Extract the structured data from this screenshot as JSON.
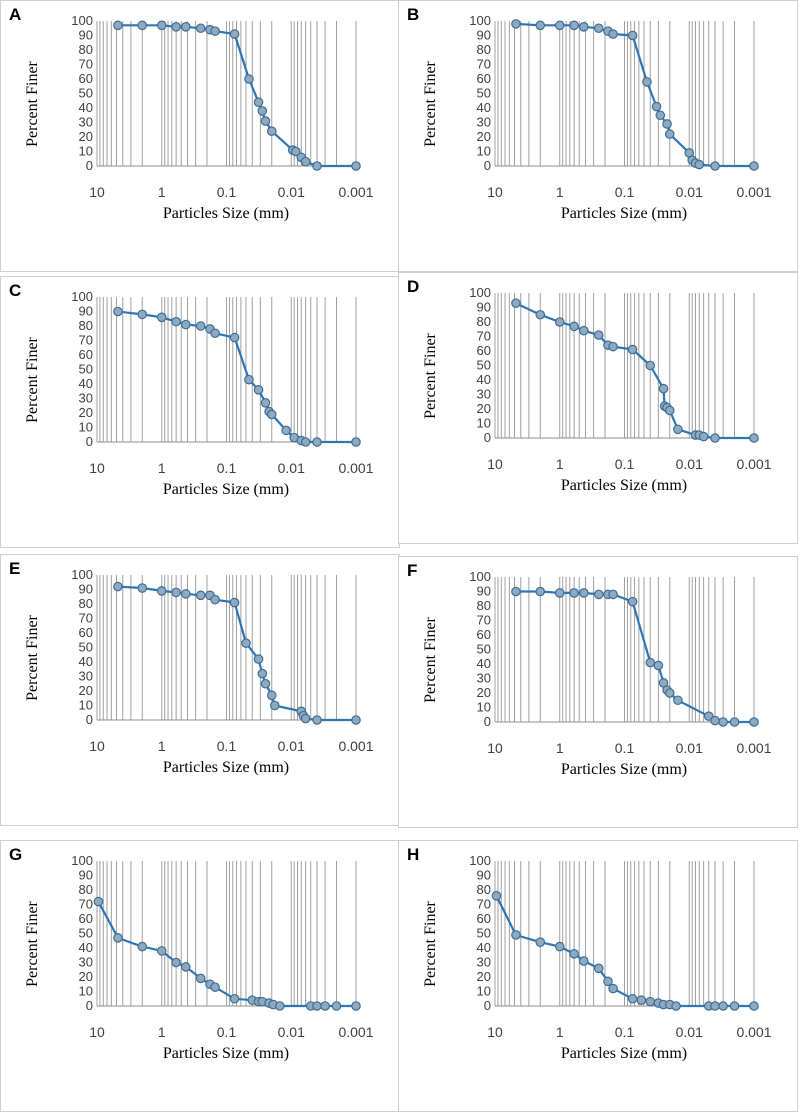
{
  "colors": {
    "line": "#2E75B6",
    "marker_fill": "#8FA9C1",
    "marker_edge": "#3D6E95",
    "grid": "#a0a0a0"
  },
  "chart_data": [
    {
      "panel": "A",
      "type": "line",
      "xlabel": "Particles Size (mm)",
      "ylabel": "Percent Finer",
      "x_scale": "log",
      "x_reversed": true,
      "xlim": [
        10,
        0.001
      ],
      "ylim": [
        0,
        100
      ],
      "yticks": [
        "0",
        "10",
        "20",
        "30",
        "40",
        "50",
        "60",
        "70",
        "80",
        "90",
        "100"
      ],
      "xticks": [
        "10",
        "1",
        "0.1",
        "0.01",
        "0.001"
      ],
      "series": [
        {
          "name": "A",
          "x": [
            4.75,
            2,
            1,
            0.6,
            0.425,
            0.25,
            0.18,
            0.15,
            0.075,
            0.045,
            0.032,
            0.028,
            0.025,
            0.02,
            0.0095,
            0.0085,
            0.007,
            0.006,
            0.004,
            0.001
          ],
          "y": [
            97,
            97,
            97,
            96,
            96,
            95,
            94,
            93,
            91,
            60,
            44,
            38,
            31,
            24,
            11,
            10,
            6,
            3,
            0,
            0
          ]
        }
      ]
    },
    {
      "panel": "B",
      "type": "line",
      "xlabel": "Particles Size (mm)",
      "ylabel": "Percent Finer",
      "x_scale": "log",
      "x_reversed": true,
      "xlim": [
        10,
        0.001
      ],
      "ylim": [
        0,
        100
      ],
      "yticks": [
        "0",
        "10",
        "20",
        "30",
        "40",
        "50",
        "60",
        "70",
        "80",
        "90",
        "100"
      ],
      "xticks": [
        "10",
        "1",
        "0.1",
        "0.01",
        "0.001"
      ],
      "series": [
        {
          "name": "B",
          "x": [
            4.75,
            2,
            1,
            0.6,
            0.425,
            0.25,
            0.18,
            0.15,
            0.075,
            0.045,
            0.032,
            0.028,
            0.022,
            0.02,
            0.01,
            0.009,
            0.008,
            0.007,
            0.004,
            0.001
          ],
          "y": [
            98,
            97,
            97,
            97,
            96,
            95,
            93,
            91,
            90,
            58,
            41,
            35,
            29,
            22,
            9,
            4,
            2,
            1,
            0,
            0
          ]
        }
      ]
    },
    {
      "panel": "C",
      "type": "line",
      "xlabel": "Particles Size (mm)",
      "ylabel": "Percent Finer",
      "x_scale": "log",
      "x_reversed": true,
      "xlim": [
        10,
        0.001
      ],
      "ylim": [
        0,
        100
      ],
      "yticks": [
        "0",
        "10",
        "20",
        "30",
        "40",
        "50",
        "60",
        "70",
        "80",
        "90",
        "100"
      ],
      "xticks": [
        "10",
        "1",
        "0.1",
        "0.01",
        "0.001"
      ],
      "series": [
        {
          "name": "C",
          "x": [
            4.75,
            2,
            1,
            0.6,
            0.425,
            0.25,
            0.18,
            0.15,
            0.075,
            0.045,
            0.032,
            0.025,
            0.022,
            0.02,
            0.012,
            0.009,
            0.007,
            0.006,
            0.004,
            0.001
          ],
          "y": [
            90,
            88,
            86,
            83,
            81,
            80,
            78,
            75,
            72,
            43,
            36,
            27,
            21,
            19,
            8,
            3,
            1,
            0,
            0,
            0
          ]
        }
      ]
    },
    {
      "panel": "D",
      "type": "line",
      "xlabel": "Particles Size (mm)",
      "ylabel": "Percent Finer",
      "x_scale": "log",
      "x_reversed": true,
      "xlim": [
        10,
        0.001
      ],
      "ylim": [
        0,
        100
      ],
      "yticks": [
        "0",
        "10",
        "20",
        "30",
        "40",
        "50",
        "60",
        "70",
        "80",
        "90",
        "100"
      ],
      "xticks": [
        "10",
        "1",
        "0.1",
        "0.01",
        "0.001"
      ],
      "series": [
        {
          "name": "D",
          "x": [
            4.75,
            2,
            1,
            0.6,
            0.425,
            0.25,
            0.18,
            0.15,
            0.075,
            0.04,
            0.025,
            0.024,
            0.022,
            0.02,
            0.015,
            0.008,
            0.007,
            0.006,
            0.004,
            0.001
          ],
          "y": [
            93,
            85,
            80,
            77,
            74,
            71,
            64,
            63,
            61,
            50,
            34,
            22,
            21,
            19,
            6,
            2,
            2,
            1,
            0,
            0
          ]
        }
      ]
    },
    {
      "panel": "E",
      "type": "line",
      "xlabel": "Particles Size (mm)",
      "ylabel": "Percent Finer",
      "x_scale": "log",
      "x_reversed": true,
      "xlim": [
        10,
        0.001
      ],
      "ylim": [
        0,
        100
      ],
      "yticks": [
        "0",
        "10",
        "20",
        "30",
        "40",
        "50",
        "60",
        "70",
        "80",
        "90",
        "100"
      ],
      "xticks": [
        "10",
        "1",
        "0.1",
        "0.01",
        "0.001"
      ],
      "series": [
        {
          "name": "E",
          "x": [
            4.75,
            2,
            1,
            0.6,
            0.425,
            0.25,
            0.18,
            0.15,
            0.075,
            0.05,
            0.032,
            0.028,
            0.025,
            0.02,
            0.018,
            0.007,
            0.0065,
            0.006,
            0.004,
            0.001
          ],
          "y": [
            92,
            91,
            89,
            88,
            87,
            86,
            86,
            83,
            81,
            53,
            42,
            32,
            25,
            17,
            10,
            6,
            3,
            1,
            0,
            0
          ]
        }
      ]
    },
    {
      "panel": "F",
      "type": "line",
      "xlabel": "Particles Size (mm)",
      "ylabel": "Percent Finer",
      "x_scale": "log",
      "x_reversed": true,
      "xlim": [
        10,
        0.001
      ],
      "ylim": [
        0,
        100
      ],
      "yticks": [
        "0",
        "10",
        "20",
        "30",
        "40",
        "50",
        "60",
        "70",
        "80",
        "90",
        "100"
      ],
      "xticks": [
        "10",
        "1",
        "0.1",
        "0.01",
        "0.001"
      ],
      "series": [
        {
          "name": "F",
          "x": [
            4.75,
            2,
            1,
            0.6,
            0.425,
            0.25,
            0.18,
            0.15,
            0.075,
            0.04,
            0.03,
            0.025,
            0.022,
            0.02,
            0.015,
            0.005,
            0.004,
            0.003,
            0.002,
            0.001
          ],
          "y": [
            90,
            90,
            89,
            89,
            89,
            88,
            88,
            88,
            83,
            41,
            39,
            27,
            22,
            20,
            15,
            4,
            1,
            0,
            0,
            0
          ]
        }
      ]
    },
    {
      "panel": "G",
      "type": "line",
      "xlabel": "Particles Size (mm)",
      "ylabel": "Percent Finer",
      "x_scale": "log",
      "x_reversed": true,
      "xlim": [
        10,
        0.001
      ],
      "ylim": [
        0,
        100
      ],
      "yticks": [
        "0",
        "10",
        "20",
        "30",
        "40",
        "50",
        "60",
        "70",
        "80",
        "90",
        "100"
      ],
      "xticks": [
        "10",
        "1",
        "0.1",
        "0.01",
        "0.001"
      ],
      "series": [
        {
          "name": "G",
          "x": [
            9.5,
            4.75,
            2,
            1,
            0.6,
            0.425,
            0.25,
            0.18,
            0.15,
            0.075,
            0.04,
            0.032,
            0.028,
            0.022,
            0.019,
            0.015,
            0.005,
            0.004,
            0.003,
            0.002,
            0.001
          ],
          "y": [
            72,
            47,
            41,
            38,
            30,
            27,
            19,
            15,
            13,
            5,
            4,
            3,
            3,
            2,
            1,
            0,
            0,
            0,
            0,
            0,
            0
          ]
        }
      ]
    },
    {
      "panel": "H",
      "type": "line",
      "xlabel": "Particles Size (mm)",
      "ylabel": "Percent Finer",
      "x_scale": "log",
      "x_reversed": true,
      "xlim": [
        10,
        0.001
      ],
      "ylim": [
        0,
        100
      ],
      "yticks": [
        "0",
        "10",
        "20",
        "30",
        "40",
        "50",
        "60",
        "70",
        "80",
        "90",
        "100"
      ],
      "xticks": [
        "10",
        "1",
        "0.1",
        "0.01",
        "0.001"
      ],
      "series": [
        {
          "name": "H",
          "x": [
            9.5,
            4.75,
            2,
            1,
            0.6,
            0.425,
            0.25,
            0.18,
            0.15,
            0.075,
            0.055,
            0.04,
            0.03,
            0.025,
            0.02,
            0.016,
            0.005,
            0.004,
            0.003,
            0.002,
            0.001
          ],
          "y": [
            76,
            49,
            44,
            41,
            36,
            31,
            26,
            17,
            12,
            5,
            4,
            3,
            2,
            1,
            1,
            0,
            0,
            0,
            0,
            0,
            0
          ]
        }
      ]
    }
  ]
}
